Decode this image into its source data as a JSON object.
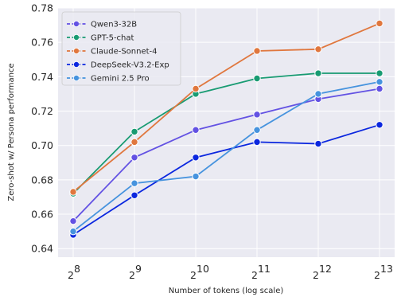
{
  "chart_data": {
    "type": "line",
    "title": "",
    "xlabel": "Number of tokens (log scale)",
    "ylabel": "Zero-shot w/ Persona performance",
    "x_scale": "log2",
    "x": [
      256,
      512,
      1024,
      2048,
      4096,
      8192
    ],
    "x_tick_labels": [
      {
        "base": "2",
        "exp": "8"
      },
      {
        "base": "2",
        "exp": "9"
      },
      {
        "base": "2",
        "exp": "10"
      },
      {
        "base": "2",
        "exp": "11"
      },
      {
        "base": "2",
        "exp": "12"
      },
      {
        "base": "2",
        "exp": "13"
      }
    ],
    "ylim": [
      0.635,
      0.78
    ],
    "y_ticks": [
      "0.64",
      "0.66",
      "0.68",
      "0.70",
      "0.72",
      "0.74",
      "0.76",
      "0.78"
    ],
    "grid": true,
    "legend_position": "top-left",
    "series": [
      {
        "name": "Qwen3-32B",
        "color": "#6352e3",
        "values": [
          0.656,
          0.693,
          0.709,
          0.718,
          0.727,
          0.733
        ]
      },
      {
        "name": "GPT-5-chat",
        "color": "#189b72",
        "values": [
          0.672,
          0.708,
          0.73,
          0.739,
          0.742,
          0.742
        ]
      },
      {
        "name": "Claude-Sonnet-4",
        "color": "#e0773e",
        "values": [
          0.673,
          0.702,
          0.733,
          0.755,
          0.756,
          0.771
        ]
      },
      {
        "name": "DeepSeek-V3.2-Exp",
        "color": "#0b27df",
        "values": [
          0.648,
          0.671,
          0.693,
          0.702,
          0.701,
          0.712
        ]
      },
      {
        "name": "Gemini 2.5 Pro",
        "color": "#4693de",
        "values": [
          0.65,
          0.678,
          0.682,
          0.709,
          0.73,
          0.737
        ]
      }
    ]
  }
}
